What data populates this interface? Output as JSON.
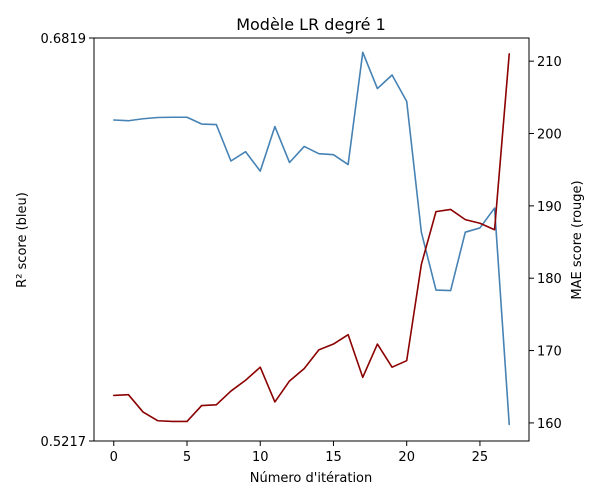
{
  "chart_data": {
    "type": "line",
    "title": "Modèle LR degré 1",
    "xlabel": "Número d'itération",
    "ylabel_left": "R² score (bleu)",
    "ylabel_right": "MAE score (rouge)",
    "xlim": [
      -1.35,
      28.35
    ],
    "ylim_left": [
      0.5217,
      0.6819
    ],
    "ylim_right": [
      157.5,
      213.2
    ],
    "xticks": [
      0,
      5,
      10,
      15,
      20,
      25
    ],
    "yticks_left": [
      0.5217,
      0.6819
    ],
    "yticks_left_labels": [
      "0.5217",
      "0.6819"
    ],
    "yticks_right": [
      160,
      170,
      180,
      190,
      200,
      210
    ],
    "grid": false,
    "x": [
      0,
      1,
      2,
      3,
      4,
      5,
      6,
      7,
      8,
      9,
      10,
      11,
      12,
      13,
      14,
      15,
      16,
      17,
      18,
      19,
      20,
      21,
      22,
      23,
      24,
      25,
      26,
      27
    ],
    "series": [
      {
        "axis": "left",
        "color": "#4682b4",
        "values": [
          0.6493,
          0.649,
          0.6498,
          0.6503,
          0.6504,
          0.6504,
          0.6477,
          0.6475,
          0.633,
          0.6367,
          0.629,
          0.6467,
          0.6324,
          0.6388,
          0.6359,
          0.6355,
          0.6316,
          0.6762,
          0.6618,
          0.6672,
          0.6567,
          0.6047,
          0.5817,
          0.5815,
          0.6047,
          0.6064,
          0.6143,
          0.5283
        ]
      },
      {
        "axis": "right",
        "color": "#8b0000",
        "values": [
          163.8,
          163.9,
          161.5,
          160.3,
          160.2,
          160.2,
          162.4,
          162.5,
          164.4,
          165.9,
          167.7,
          162.9,
          165.8,
          167.5,
          170.1,
          170.9,
          172.2,
          166.3,
          170.9,
          167.7,
          168.6,
          181.9,
          189.2,
          189.5,
          188.1,
          187.6,
          186.7,
          211.0
        ]
      }
    ]
  }
}
